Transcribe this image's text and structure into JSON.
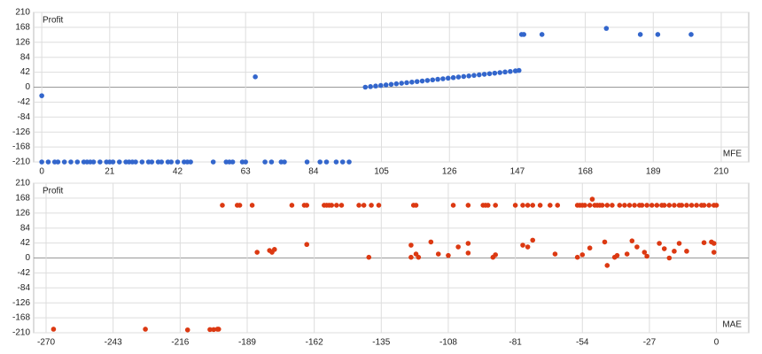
{
  "chart_data": [
    {
      "type": "scatter",
      "y_label": "Profit",
      "x_label": "MFE",
      "color": "#3366cc",
      "grid": true,
      "xlim": [
        -2.5,
        218.5
      ],
      "xticks": [
        0,
        21,
        42,
        63,
        84,
        105,
        126,
        147,
        168,
        189,
        210
      ],
      "ylim": [
        -210,
        210
      ],
      "yticks": [
        -210,
        -168,
        -126,
        -84,
        -42,
        0,
        42,
        84,
        126,
        168,
        210
      ],
      "x": [
        0,
        0,
        2,
        4,
        5,
        7,
        9,
        11,
        13,
        14,
        15,
        16,
        18,
        20,
        21,
        22,
        24,
        26,
        27,
        28,
        29,
        31,
        33,
        34,
        36,
        37,
        39,
        40,
        42,
        44,
        45,
        46,
        53,
        57,
        58,
        59,
        62,
        63,
        69,
        71,
        74,
        75,
        82,
        86,
        88,
        91,
        93,
        95,
        66,
        100,
        101.6,
        103.2,
        104.8,
        106.4,
        108,
        109.6,
        111.2,
        112.8,
        114.4,
        116,
        117.6,
        119.2,
        120.8,
        122.4,
        124,
        125.6,
        127.2,
        128.8,
        130.4,
        132,
        133.6,
        135.2,
        136.8,
        138.4,
        140,
        141.6,
        143.2,
        144.8,
        146.4,
        147.5,
        148.3,
        149,
        154.6,
        174.5,
        185,
        190.4,
        200.7
      ],
      "values": [
        -24,
        -210,
        -210,
        -210,
        -210,
        -210,
        -210,
        -210,
        -210,
        -210,
        -210,
        -210,
        -210,
        -210,
        -210,
        -210,
        -210,
        -210,
        -210,
        -210,
        -210,
        -210,
        -210,
        -210,
        -210,
        -210,
        -210,
        -210,
        -210,
        -210,
        -210,
        -210,
        -210,
        -210,
        -210,
        -210,
        -210,
        -210,
        -210,
        -210,
        -210,
        -210,
        -210,
        -210,
        -210,
        -210,
        -210,
        -210,
        29,
        0,
        1.6,
        3.2,
        4.7,
        6.3,
        7.9,
        9.5,
        11,
        12.6,
        14.2,
        15.8,
        17.3,
        18.9,
        20.5,
        22.1,
        23.6,
        25.2,
        26.8,
        28.4,
        30,
        31.5,
        33.1,
        34.7,
        36.3,
        37.8,
        39.4,
        41,
        42.6,
        44.1,
        45.7,
        47,
        148,
        148,
        148,
        165,
        148,
        148,
        148
      ]
    },
    {
      "type": "scatter",
      "y_label": "Profit",
      "x_label": "MAE",
      "color": "#dc3912",
      "grid": true,
      "xlim": [
        -275,
        13
      ],
      "xticks": [
        -270,
        -243,
        -216,
        -189,
        -162,
        -135,
        -108,
        -81,
        -54,
        -27,
        0
      ],
      "ylim": [
        -210,
        210
      ],
      "yticks": [
        -210,
        -168,
        -126,
        -84,
        -42,
        0,
        42,
        84,
        126,
        168,
        210
      ],
      "x": [
        -267,
        -230,
        -213,
        -204,
        -202.5,
        -201,
        -200.5,
        -199,
        -193,
        -192,
        -187,
        -171,
        -166,
        -165,
        -158,
        -157,
        -156,
        -155,
        -153,
        -151,
        -144,
        -142,
        -139,
        -136,
        -122,
        -121,
        -106,
        -100,
        -94,
        -93,
        -92,
        -89,
        -81,
        -78,
        -76,
        -74,
        -71,
        -67,
        -64,
        -56,
        -55,
        -54,
        -53,
        -51,
        -49,
        -48,
        -47,
        -46,
        -44,
        -42,
        -39,
        -37,
        -35,
        -33,
        -31,
        -30,
        -28,
        -26,
        -24,
        -22,
        -21,
        -19,
        -17,
        -15,
        -14,
        -12,
        -10,
        -8,
        -6,
        -5,
        -3,
        -1,
        0,
        -50,
        -185,
        -180,
        -179,
        -178,
        -165,
        -140,
        -123,
        -123,
        -121,
        -120,
        -115,
        -112,
        -108,
        -104,
        -100,
        -100,
        -90,
        -89,
        -78,
        -76,
        -74,
        -65,
        -56,
        -54,
        -51,
        -45,
        -44,
        -41,
        -40,
        -36,
        -34,
        -32,
        -29,
        -28,
        -23,
        -21,
        -19,
        -17,
        -15,
        -12,
        -5,
        -1,
        -2,
        -1
      ],
      "values": [
        -200,
        -200,
        -202,
        -201,
        -201,
        -200,
        -200,
        148,
        148,
        148,
        148,
        148,
        148,
        148,
        148,
        148,
        148,
        148,
        148,
        148,
        148,
        148,
        148,
        148,
        148,
        148,
        148,
        148,
        148,
        148,
        148,
        148,
        148,
        148,
        148,
        148,
        148,
        148,
        148,
        148,
        148,
        148,
        148,
        148,
        148,
        148,
        148,
        148,
        148,
        148,
        148,
        148,
        148,
        148,
        148,
        148,
        148,
        148,
        148,
        148,
        148,
        148,
        148,
        148,
        148,
        148,
        148,
        148,
        148,
        148,
        148,
        148,
        148,
        165,
        16,
        21,
        16,
        24,
        38,
        2,
        36,
        2,
        11,
        2,
        45,
        11,
        7,
        31,
        41,
        14,
        2,
        9,
        36,
        31,
        50,
        11,
        2,
        9,
        28,
        45,
        -21,
        2,
        7,
        11,
        48,
        31,
        16,
        5,
        41,
        26,
        0,
        19,
        41,
        19,
        43,
        16,
        45,
        41
      ]
    }
  ]
}
